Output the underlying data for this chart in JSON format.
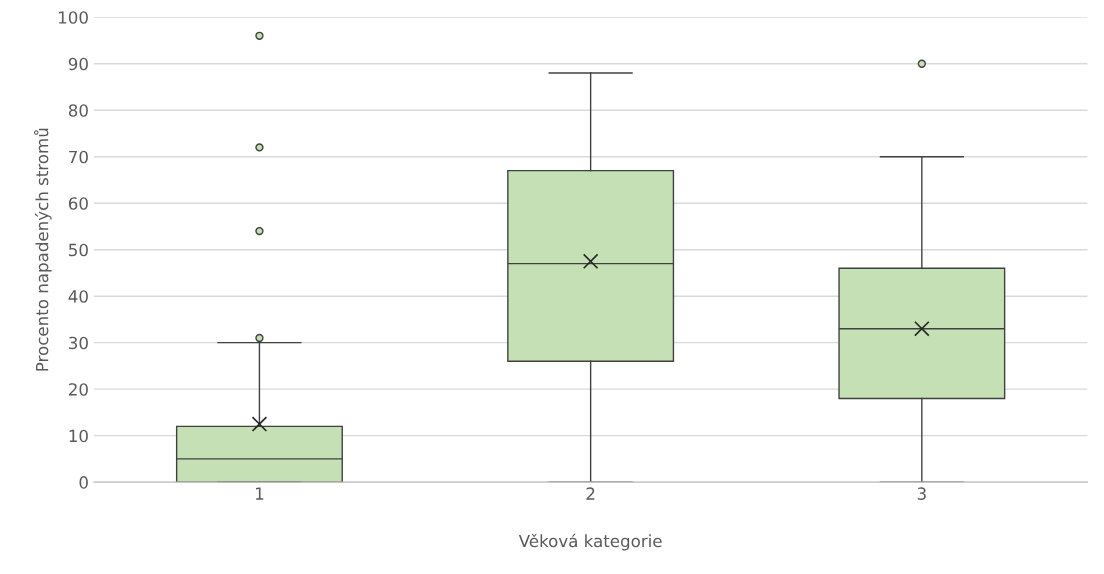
{
  "chart_data": {
    "type": "box",
    "xlabel": "Věková kategorie",
    "ylabel": "Procento napadených stromů",
    "categories": [
      "1",
      "2",
      "3"
    ],
    "boxes": [
      {
        "low": 0,
        "q1": 0,
        "median": 5,
        "q3": 12,
        "high": 30,
        "mean": 12.5,
        "outliers": [
          31,
          54,
          72,
          96
        ]
      },
      {
        "low": 0,
        "q1": 26,
        "median": 47,
        "q3": 67,
        "high": 88,
        "mean": 47.5
      },
      {
        "low": 0,
        "q1": 18,
        "median": 33,
        "q3": 46,
        "high": 70,
        "mean": 33,
        "outliers": [
          90
        ]
      }
    ],
    "color": "#c5e0b4",
    "ylim": [
      0,
      100
    ],
    "yticks": [
      0,
      10,
      20,
      30,
      40,
      50,
      60,
      70,
      80,
      90,
      100
    ],
    "grid": "y",
    "legend": false
  }
}
